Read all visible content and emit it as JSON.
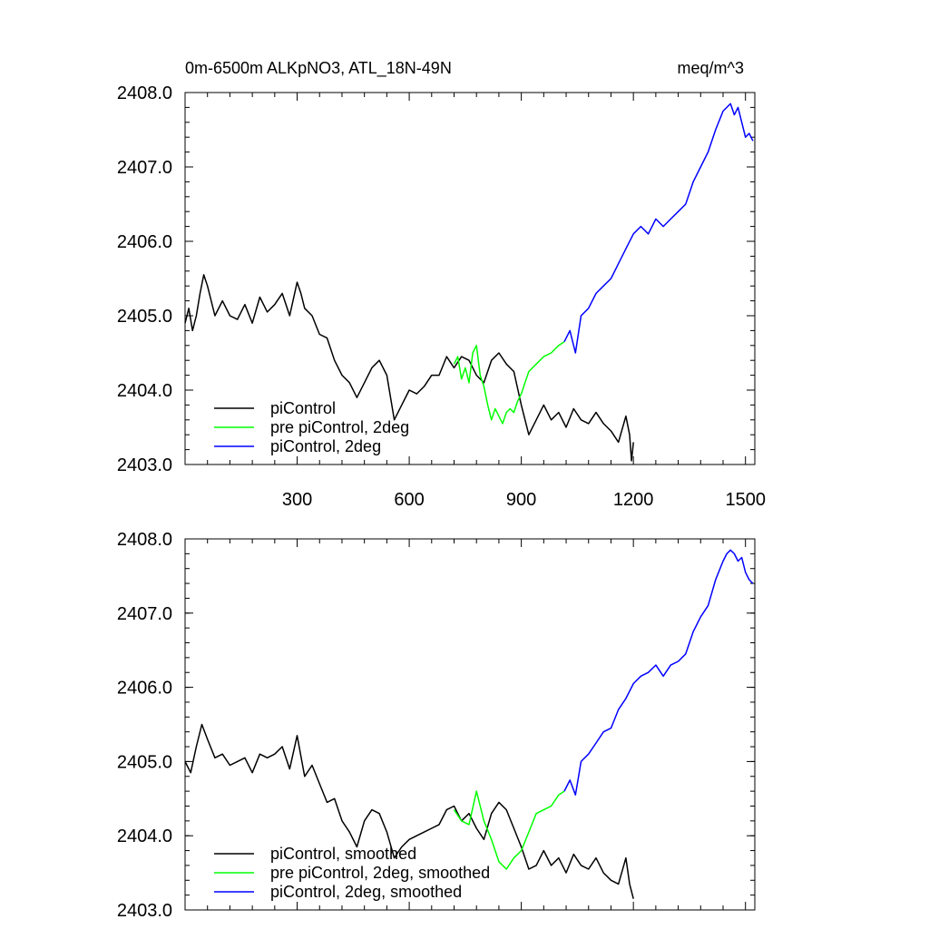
{
  "figure": {
    "title_left": "0m-6500m ALKpNO3, ATL_18N-49N",
    "title_right": "meq/m^3"
  },
  "chart_data": [
    {
      "type": "line",
      "panel": "top",
      "xlim": [
        0,
        1525
      ],
      "ylim": [
        2403.0,
        2408.0
      ],
      "x_ticks": [
        300,
        600,
        900,
        1200,
        1500
      ],
      "x_tick_labels": [
        "300",
        "600",
        "900",
        "1200",
        "1500"
      ],
      "y_ticks": [
        2403.0,
        2404.0,
        2405.0,
        2406.0,
        2407.0,
        2408.0
      ],
      "y_tick_labels": [
        "2403.0",
        "2404.0",
        "2405.0",
        "2406.0",
        "2407.0",
        "2408.0"
      ],
      "legend_position": "bottom-left",
      "series": [
        {
          "name": "piControl",
          "color": "#000000",
          "x": [
            0,
            10,
            20,
            30,
            40,
            50,
            60,
            70,
            80,
            100,
            120,
            140,
            160,
            180,
            200,
            220,
            240,
            260,
            280,
            300,
            310,
            320,
            340,
            360,
            380,
            400,
            420,
            440,
            460,
            480,
            500,
            520,
            540,
            560,
            580,
            600,
            620,
            640,
            660,
            680,
            700,
            720,
            740,
            760,
            780,
            800,
            820,
            840,
            860,
            880,
            900,
            920,
            940,
            960,
            980,
            1000,
            1020,
            1040,
            1060,
            1080,
            1100,
            1120,
            1140,
            1160,
            1180,
            1190,
            1195,
            1200
          ],
          "y": [
            2404.9,
            2405.1,
            2404.8,
            2405.0,
            2405.3,
            2405.55,
            2405.4,
            2405.2,
            2405.0,
            2405.2,
            2405.0,
            2404.95,
            2405.15,
            2404.9,
            2405.25,
            2405.05,
            2405.15,
            2405.3,
            2405.0,
            2405.45,
            2405.3,
            2405.1,
            2405.0,
            2404.75,
            2404.7,
            2404.4,
            2404.2,
            2404.1,
            2403.9,
            2404.1,
            2404.3,
            2404.4,
            2404.2,
            2403.6,
            2403.8,
            2404.0,
            2403.95,
            2404.05,
            2404.2,
            2404.2,
            2404.45,
            2404.3,
            2404.45,
            2404.4,
            2404.2,
            2404.1,
            2404.4,
            2404.5,
            2404.35,
            2404.25,
            2403.8,
            2403.4,
            2403.6,
            2403.8,
            2403.6,
            2403.7,
            2403.5,
            2403.75,
            2403.6,
            2403.55,
            2403.7,
            2403.55,
            2403.45,
            2403.3,
            2403.65,
            2403.4,
            2403.05,
            2403.3
          ]
        },
        {
          "name": "pre piControl, 2deg",
          "color": "#00ff00",
          "x": [
            720,
            730,
            740,
            750,
            760,
            770,
            780,
            790,
            800,
            810,
            820,
            830,
            840,
            850,
            860,
            870,
            880,
            890,
            900,
            910,
            920,
            940,
            960,
            980,
            1000,
            1015
          ],
          "y": [
            2404.35,
            2404.45,
            2404.15,
            2404.3,
            2404.1,
            2404.5,
            2404.6,
            2404.2,
            2404.05,
            2403.8,
            2403.6,
            2403.75,
            2403.65,
            2403.55,
            2403.7,
            2403.75,
            2403.7,
            2403.85,
            2403.95,
            2404.1,
            2404.25,
            2404.35,
            2404.45,
            2404.5,
            2404.6,
            2404.65
          ]
        },
        {
          "name": "piControl, 2deg",
          "color": "#0000ff",
          "x": [
            1015,
            1030,
            1045,
            1060,
            1080,
            1100,
            1120,
            1140,
            1160,
            1180,
            1200,
            1220,
            1240,
            1260,
            1280,
            1300,
            1320,
            1340,
            1360,
            1380,
            1400,
            1420,
            1440,
            1450,
            1460,
            1470,
            1480,
            1490,
            1500,
            1510,
            1520
          ],
          "y": [
            2404.65,
            2404.8,
            2404.5,
            2405.0,
            2405.1,
            2405.3,
            2405.4,
            2405.5,
            2405.7,
            2405.9,
            2406.1,
            2406.2,
            2406.1,
            2406.3,
            2406.2,
            2406.3,
            2406.4,
            2406.5,
            2406.8,
            2407.0,
            2407.2,
            2407.5,
            2407.75,
            2407.8,
            2407.85,
            2407.7,
            2407.8,
            2407.6,
            2407.4,
            2407.45,
            2407.35
          ]
        }
      ]
    },
    {
      "type": "line",
      "panel": "bottom",
      "xlim": [
        0,
        1525
      ],
      "ylim": [
        2403.0,
        2408.0
      ],
      "x_ticks": [
        300,
        600,
        900,
        1200,
        1500
      ],
      "y_ticks": [
        2403.0,
        2404.0,
        2405.0,
        2406.0,
        2407.0,
        2408.0
      ],
      "y_tick_labels": [
        "2403.0",
        "2404.0",
        "2405.0",
        "2406.0",
        "2407.0",
        "2408.0"
      ],
      "legend_position": "bottom-left",
      "series": [
        {
          "name": "piControl, smoothed",
          "color": "#000000",
          "x": [
            0,
            15,
            30,
            45,
            60,
            80,
            100,
            120,
            140,
            160,
            180,
            200,
            220,
            240,
            260,
            280,
            300,
            320,
            340,
            360,
            380,
            400,
            420,
            440,
            460,
            480,
            500,
            520,
            540,
            560,
            580,
            600,
            620,
            640,
            660,
            680,
            700,
            720,
            740,
            760,
            780,
            800,
            820,
            840,
            860,
            880,
            900,
            920,
            940,
            960,
            980,
            1000,
            1020,
            1040,
            1060,
            1080,
            1100,
            1120,
            1140,
            1160,
            1180,
            1190,
            1200
          ],
          "y": [
            2405.0,
            2404.85,
            2405.2,
            2405.5,
            2405.3,
            2405.05,
            2405.1,
            2404.95,
            2405.0,
            2405.05,
            2404.85,
            2405.1,
            2405.05,
            2405.1,
            2405.2,
            2404.9,
            2405.35,
            2404.8,
            2404.95,
            2404.7,
            2404.45,
            2404.5,
            2404.2,
            2404.05,
            2403.85,
            2404.2,
            2404.35,
            2404.3,
            2404.05,
            2403.7,
            2403.85,
            2403.95,
            2404.0,
            2404.05,
            2404.1,
            2404.15,
            2404.35,
            2404.4,
            2404.2,
            2404.3,
            2404.1,
            2403.95,
            2404.3,
            2404.45,
            2404.35,
            2404.1,
            2403.85,
            2403.55,
            2403.6,
            2403.8,
            2403.6,
            2403.7,
            2403.5,
            2403.75,
            2403.6,
            2403.55,
            2403.7,
            2403.5,
            2403.4,
            2403.35,
            2403.7,
            2403.35,
            2403.15
          ]
        },
        {
          "name": "pre piControl, 2deg, smoothed",
          "color": "#00ff00",
          "x": [
            720,
            740,
            760,
            780,
            800,
            820,
            840,
            860,
            880,
            900,
            920,
            940,
            960,
            980,
            1000,
            1015
          ],
          "y": [
            2404.35,
            2404.2,
            2404.15,
            2404.6,
            2404.2,
            2403.95,
            2403.65,
            2403.55,
            2403.7,
            2403.8,
            2404.05,
            2404.3,
            2404.35,
            2404.4,
            2404.55,
            2404.6
          ]
        },
        {
          "name": "piControl, 2deg, smoothed",
          "color": "#0000ff",
          "x": [
            1015,
            1030,
            1045,
            1060,
            1080,
            1100,
            1120,
            1140,
            1160,
            1180,
            1200,
            1220,
            1240,
            1260,
            1280,
            1300,
            1320,
            1340,
            1360,
            1380,
            1400,
            1420,
            1440,
            1450,
            1460,
            1470,
            1480,
            1490,
            1500,
            1510,
            1520
          ],
          "y": [
            2404.6,
            2404.75,
            2404.55,
            2405.0,
            2405.1,
            2405.25,
            2405.4,
            2405.45,
            2405.7,
            2405.85,
            2406.05,
            2406.15,
            2406.2,
            2406.3,
            2406.15,
            2406.3,
            2406.35,
            2406.45,
            2406.75,
            2406.95,
            2407.1,
            2407.45,
            2407.7,
            2407.8,
            2407.85,
            2407.8,
            2407.7,
            2407.75,
            2407.55,
            2407.45,
            2407.4
          ]
        }
      ]
    }
  ]
}
